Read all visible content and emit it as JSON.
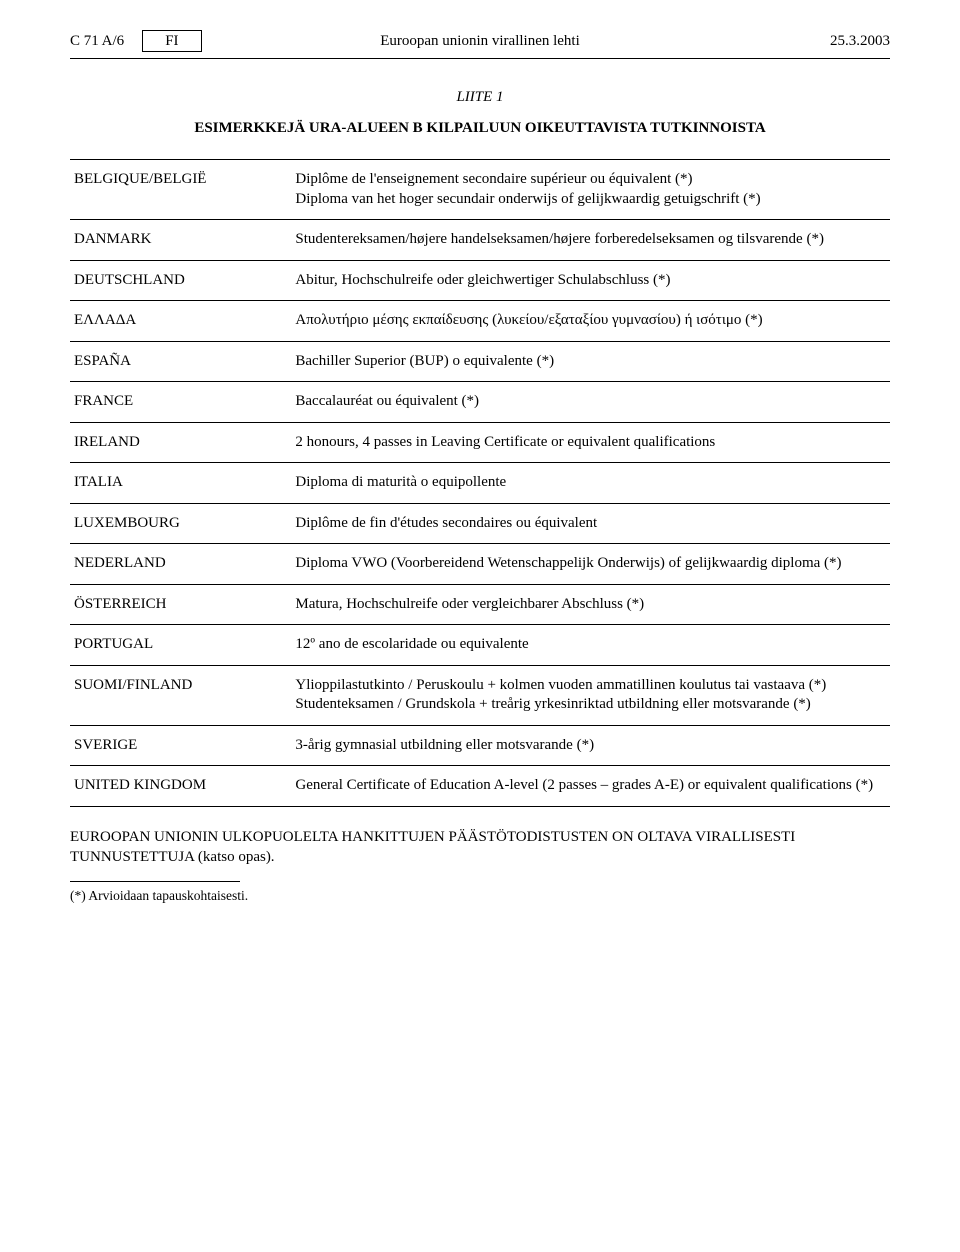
{
  "header": {
    "doc_ref": "C 71 A/6",
    "lang_code": "FI",
    "journal_title": "Euroopan unionin virallinen lehti",
    "date": "25.3.2003"
  },
  "annex_label": "LIITE 1",
  "main_title": "ESIMERKKEJÄ URA-ALUEEN B KILPAILUUN OIKEUTTAVISTA TUTKINNOISTA",
  "rows": [
    {
      "country": "BELGIQUE/BELGIË",
      "descr": "Diplôme de l'enseignement secondaire supérieur ou équivalent (*)\nDiploma van het hoger secundair onderwijs of gelijkwaardig getuigschrift (*)"
    },
    {
      "country": "DANMARK",
      "descr": "Studentereksamen/højere handelseksamen/højere forberedelseksamen og tilsvarende (*)"
    },
    {
      "country": "DEUTSCHLAND",
      "descr": "Abitur, Hochschulreife oder gleichwertiger Schulabschluss (*)"
    },
    {
      "country": "ΕΛΛΑΔΑ",
      "descr": "Απολυτήριο μέσης εκπαίδευσης (λυκείου/εξαταξίου γυμνασίου) ή ισότιμο (*)"
    },
    {
      "country": "ESPAÑA",
      "descr": "Bachiller Superior (BUP) o equivalente (*)"
    },
    {
      "country": "FRANCE",
      "descr": "Baccalauréat ou équivalent (*)"
    },
    {
      "country": "IRELAND",
      "descr": "2 honours, 4 passes in Leaving Certificate or equivalent qualifications"
    },
    {
      "country": "ITALIA",
      "descr": "Diploma di maturità o equipollente"
    },
    {
      "country": "LUXEMBOURG",
      "descr": "Diplôme de fin d'études secondaires ou équivalent"
    },
    {
      "country": "NEDERLAND",
      "descr": "Diploma VWO (Voorbereidend Wetenschappelijk Onderwijs) of gelijkwaardig diploma (*)"
    },
    {
      "country": "ÖSTERREICH",
      "descr": "Matura, Hochschulreife oder vergleichbarer Abschluss (*)"
    },
    {
      "country": "PORTUGAL",
      "descr": "12º ano de escolaridade ou equivalente"
    },
    {
      "country": "SUOMI/FINLAND",
      "descr": "Ylioppilastutkinto / Peruskoulu + kolmen vuoden ammatillinen koulutus tai vastaava (*)\nStudenteksamen / Grundskola + treårig yrkesinriktad utbildning eller motsvarande (*)"
    },
    {
      "country": "SVERIGE",
      "descr": "3-årig gymnasial utbildning eller motsvarande (*)"
    },
    {
      "country": "UNITED KINGDOM",
      "descr": "General Certificate of Education A-level (2 passes – grades A-E) or equivalent qualifications (*)"
    }
  ],
  "footer_note": "EUROOPAN UNIONIN ULKOPUOLELTA HANKITTUJEN PÄÄSTÖTODISTUSTEN ON OLTAVA VIRALLISESTI TUNNUSTETTUJA (katso opas).",
  "footnote": "(*) Arvioidaan tapauskohtaisesti."
}
